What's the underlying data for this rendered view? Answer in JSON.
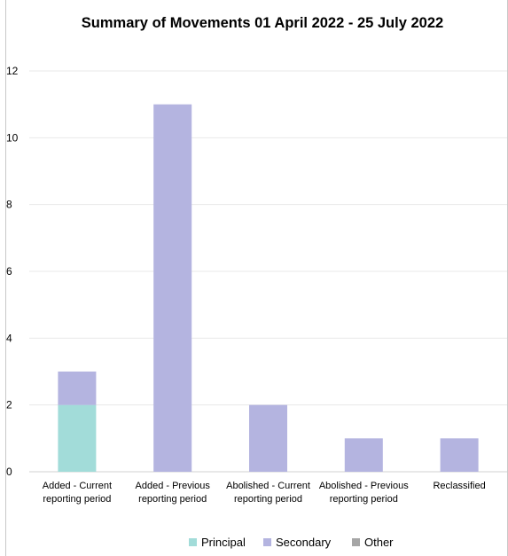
{
  "chart_data": {
    "type": "bar",
    "stacked": true,
    "title": "Summary of Movements 01 April 2022 - 25 July 2022",
    "categories": [
      [
        "Added - Current",
        "reporting period"
      ],
      [
        "Added - Previous",
        "reporting period"
      ],
      [
        "Abolished - Current",
        "reporting period"
      ],
      [
        "Abolished - Previous",
        "reporting period"
      ],
      [
        "Reclassified"
      ]
    ],
    "series": [
      {
        "name": "Principal",
        "color": "#a2dcd9",
        "values": [
          2,
          0,
          0,
          0,
          0
        ]
      },
      {
        "name": "Secondary",
        "color": "#b4b4e0",
        "values": [
          1,
          11,
          2,
          1,
          1
        ]
      },
      {
        "name": "Other",
        "color": "#a6a6a6",
        "values": [
          0,
          0,
          0,
          0,
          0
        ]
      }
    ],
    "ylim": [
      0,
      12
    ],
    "yticks": [
      0,
      2,
      4,
      6,
      8,
      10,
      12
    ],
    "grid": true,
    "legend_position": "bottom"
  }
}
